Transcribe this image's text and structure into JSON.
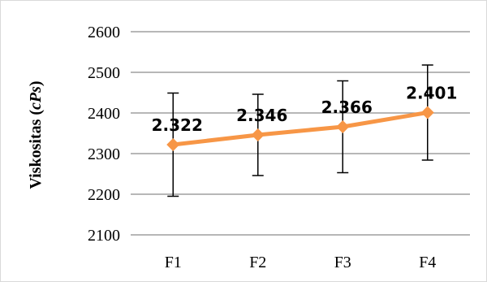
{
  "chart_data": {
    "type": "line",
    "categories": [
      "F1",
      "F2",
      "F3",
      "F4"
    ],
    "series": [
      {
        "values": [
          2322,
          2346,
          2366,
          2401
        ],
        "error": [
          127,
          100,
          113,
          117
        ],
        "data_labels": [
          "2.322",
          "2.346",
          "2.366",
          "2.401"
        ],
        "color": "#f79646"
      }
    ],
    "ylabel": {
      "main": "Viskositas (",
      "unit": "cPs",
      "close": ")"
    },
    "xlabel": "",
    "ylim": [
      2100,
      2600
    ],
    "yticks": [
      2100,
      2200,
      2300,
      2400,
      2500,
      2600
    ],
    "grid": true,
    "legend": "none",
    "colors": {
      "grid": "#8c8c8c",
      "errorbar": "#000000",
      "frame": "#d9d9d9"
    }
  }
}
